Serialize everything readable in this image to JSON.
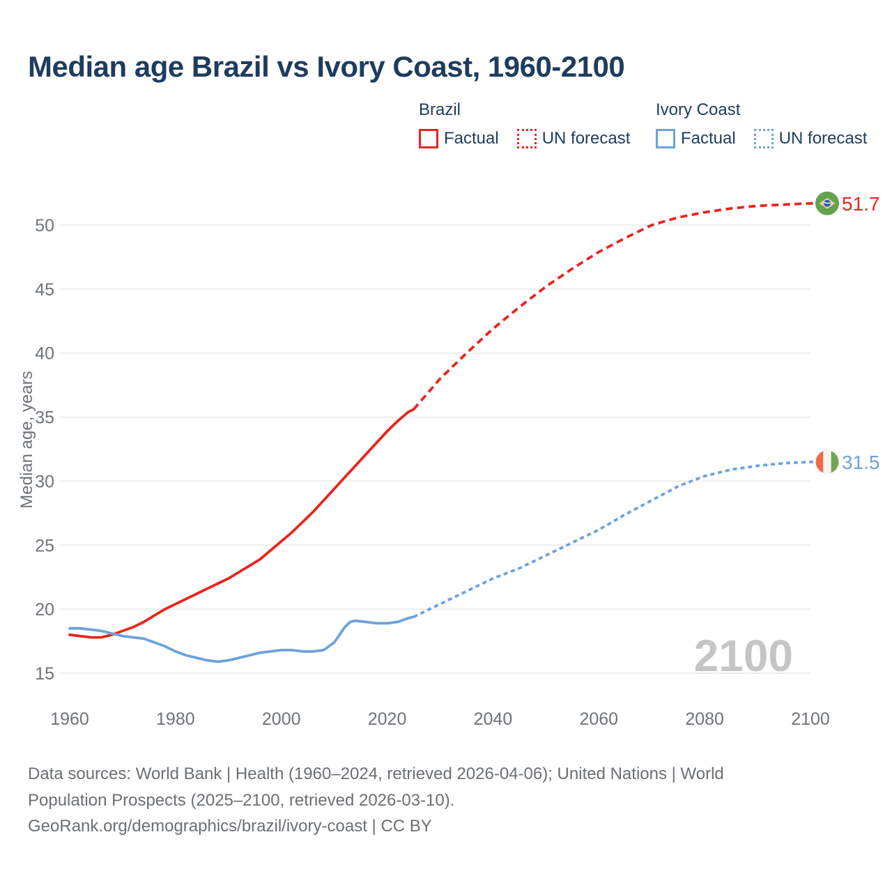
{
  "header": {
    "title": "Median age Brazil vs Ivory Coast, 1960-2100"
  },
  "legend": {
    "groups": [
      {
        "label": "Brazil",
        "items": [
          {
            "label": "Factual",
            "style": "solid",
            "color": "#e8251d"
          },
          {
            "label": "UN forecast",
            "style": "dotted",
            "color": "#e8251d"
          }
        ]
      },
      {
        "label": "Ivory Coast",
        "items": [
          {
            "label": "Factual",
            "style": "solid",
            "color": "#6ba3dc"
          },
          {
            "label": "UN forecast",
            "style": "dotted",
            "color": "#6ba3dc"
          }
        ]
      }
    ]
  },
  "chart_data": {
    "type": "line",
    "title": "Median age Brazil vs Ivory Coast, 1960-2100",
    "xlabel": "",
    "ylabel": "Median age, years",
    "xlim": [
      1960,
      2112
    ],
    "ylim": [
      15,
      52.5
    ],
    "xticks": [
      1960,
      1980,
      2000,
      2020,
      2040,
      2060,
      2080,
      2100
    ],
    "yticks": [
      15,
      20,
      25,
      30,
      35,
      40,
      45,
      50
    ],
    "grid": "horizontal",
    "legend_position": "top-right",
    "watermark": "2100",
    "colors": {
      "brazil": "#e8251d",
      "ivory_coast": "#6ba3dc",
      "title_text": "#1d3c5e",
      "axis_text": "#6e7378",
      "gridline": "#e9e9e9",
      "watermark": "#c5c5c5"
    },
    "series": [
      {
        "name": "Brazil Factual",
        "color": "#e8251d",
        "dash": "solid",
        "points": [
          [
            1960,
            18.0
          ],
          [
            1962,
            17.9
          ],
          [
            1964,
            17.8
          ],
          [
            1966,
            17.8
          ],
          [
            1968,
            18.0
          ],
          [
            1970,
            18.3
          ],
          [
            1972,
            18.6
          ],
          [
            1974,
            19.0
          ],
          [
            1976,
            19.5
          ],
          [
            1978,
            20.0
          ],
          [
            1980,
            20.4
          ],
          [
            1982,
            20.8
          ],
          [
            1984,
            21.2
          ],
          [
            1986,
            21.6
          ],
          [
            1988,
            22.0
          ],
          [
            1990,
            22.4
          ],
          [
            1992,
            22.9
          ],
          [
            1994,
            23.4
          ],
          [
            1996,
            23.9
          ],
          [
            1998,
            24.6
          ],
          [
            2000,
            25.3
          ],
          [
            2002,
            26.0
          ],
          [
            2004,
            26.8
          ],
          [
            2006,
            27.6
          ],
          [
            2008,
            28.5
          ],
          [
            2010,
            29.4
          ],
          [
            2012,
            30.3
          ],
          [
            2014,
            31.2
          ],
          [
            2016,
            32.1
          ],
          [
            2018,
            33.0
          ],
          [
            2020,
            33.9
          ],
          [
            2022,
            34.7
          ],
          [
            2024,
            35.4
          ],
          [
            2025,
            35.6
          ]
        ]
      },
      {
        "name": "Brazil UN forecast",
        "color": "#e8251d",
        "dash": "dashed",
        "end_label": "51.7",
        "end_flag": "brazil-flag",
        "points": [
          [
            2025,
            35.6
          ],
          [
            2030,
            38.0
          ],
          [
            2035,
            40.0
          ],
          [
            2040,
            41.9
          ],
          [
            2045,
            43.6
          ],
          [
            2050,
            45.2
          ],
          [
            2055,
            46.6
          ],
          [
            2060,
            47.9
          ],
          [
            2065,
            49.0
          ],
          [
            2070,
            50.0
          ],
          [
            2075,
            50.6
          ],
          [
            2080,
            51.0
          ],
          [
            2085,
            51.3
          ],
          [
            2090,
            51.5
          ],
          [
            2095,
            51.6
          ],
          [
            2100,
            51.7
          ]
        ]
      },
      {
        "name": "Ivory Coast Factual",
        "color": "#6ba3dc",
        "dash": "solid",
        "points": [
          [
            1960,
            18.5
          ],
          [
            1962,
            18.5
          ],
          [
            1964,
            18.4
          ],
          [
            1966,
            18.3
          ],
          [
            1968,
            18.1
          ],
          [
            1970,
            17.9
          ],
          [
            1972,
            17.8
          ],
          [
            1974,
            17.7
          ],
          [
            1976,
            17.4
          ],
          [
            1978,
            17.1
          ],
          [
            1980,
            16.7
          ],
          [
            1982,
            16.4
          ],
          [
            1984,
            16.2
          ],
          [
            1986,
            16.0
          ],
          [
            1988,
            15.9
          ],
          [
            1990,
            16.0
          ],
          [
            1992,
            16.2
          ],
          [
            1994,
            16.4
          ],
          [
            1996,
            16.6
          ],
          [
            1998,
            16.7
          ],
          [
            2000,
            16.8
          ],
          [
            2002,
            16.8
          ],
          [
            2004,
            16.7
          ],
          [
            2006,
            16.7
          ],
          [
            2008,
            16.8
          ],
          [
            2010,
            17.4
          ],
          [
            2012,
            18.6
          ],
          [
            2013,
            19.0
          ],
          [
            2014,
            19.1
          ],
          [
            2016,
            19.0
          ],
          [
            2018,
            18.9
          ],
          [
            2020,
            18.9
          ],
          [
            2022,
            19.0
          ],
          [
            2024,
            19.3
          ],
          [
            2025,
            19.4
          ]
        ]
      },
      {
        "name": "Ivory Coast UN forecast",
        "color": "#6ba3dc",
        "dash": "dashed",
        "end_label": "31.5",
        "end_flag": "ivory-coast-flag",
        "points": [
          [
            2025,
            19.4
          ],
          [
            2030,
            20.4
          ],
          [
            2035,
            21.4
          ],
          [
            2040,
            22.4
          ],
          [
            2045,
            23.2
          ],
          [
            2050,
            24.2
          ],
          [
            2055,
            25.2
          ],
          [
            2060,
            26.2
          ],
          [
            2065,
            27.4
          ],
          [
            2070,
            28.5
          ],
          [
            2075,
            29.6
          ],
          [
            2080,
            30.4
          ],
          [
            2085,
            30.9
          ],
          [
            2090,
            31.2
          ],
          [
            2095,
            31.4
          ],
          [
            2100,
            31.5
          ]
        ]
      }
    ]
  },
  "footer": {
    "lines": [
      "Data sources: World Bank | Health (1960–2024, retrieved 2026-04-06); United Nations | World",
      "Population Prospects (2025–2100, retrieved 2026-03-10).",
      "GeoRank.org/demographics/brazil/ivory-coast | CC BY"
    ]
  }
}
